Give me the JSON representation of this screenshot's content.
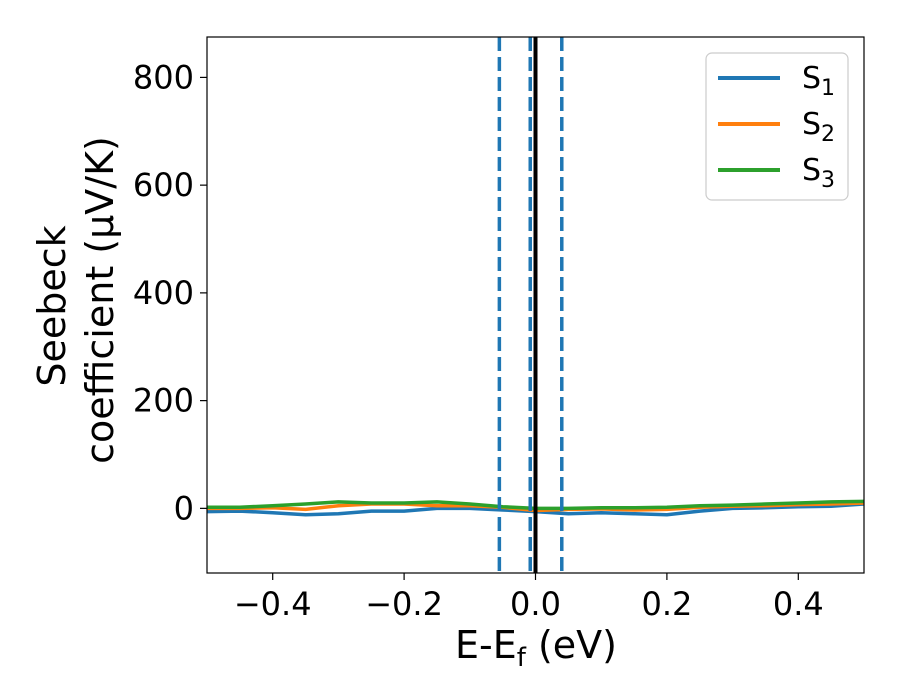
{
  "chart_data": {
    "type": "line",
    "xlabel": "E-E",
    "xlabel_sub": "f",
    "xlabel_unit": " (eV)",
    "ylabel_line1": "Seebeck",
    "ylabel_line2": "coefficient  (μV/K)",
    "xlim": [
      -0.5,
      0.5
    ],
    "ylim": [
      -120,
      875
    ],
    "xticks": [
      -0.4,
      -0.2,
      0.0,
      0.2,
      0.4
    ],
    "xtick_labels": [
      "−0.4",
      "−0.2",
      "0.0",
      "0.2",
      "0.4"
    ],
    "yticks": [
      0,
      200,
      400,
      600,
      800
    ],
    "ytick_labels": [
      "0",
      "200",
      "400",
      "600",
      "800"
    ],
    "grid": false,
    "legend_position": "top-right",
    "vertical_lines": [
      {
        "x": -0.055,
        "style": "dashed",
        "color": "#1f77b4"
      },
      {
        "x": -0.008,
        "style": "dashed",
        "color": "#1f77b4"
      },
      {
        "x": 0.04,
        "style": "dashed",
        "color": "#1f77b4"
      },
      {
        "x": 0.0,
        "style": "solid",
        "color": "#000000"
      }
    ],
    "series": [
      {
        "name": "S",
        "sub": "1",
        "color": "#1f77b4",
        "x": [
          -0.5,
          -0.45,
          -0.4,
          -0.35,
          -0.3,
          -0.25,
          -0.2,
          -0.15,
          -0.1,
          -0.05,
          0.0,
          0.05,
          0.1,
          0.15,
          0.2,
          0.25,
          0.3,
          0.35,
          0.4,
          0.45,
          0.5
        ],
        "y": [
          -6,
          -5,
          -8,
          -12,
          -10,
          -5,
          -5,
          0,
          0,
          -3,
          -6,
          -10,
          -8,
          -10,
          -12,
          -5,
          0,
          1,
          3,
          4,
          8
        ]
      },
      {
        "name": "S",
        "sub": "2",
        "color": "#ff7f0e",
        "x": [
          -0.5,
          -0.45,
          -0.4,
          -0.35,
          -0.3,
          -0.25,
          -0.2,
          -0.15,
          -0.1,
          -0.05,
          0.0,
          0.05,
          0.1,
          0.15,
          0.2,
          0.25,
          0.3,
          0.35,
          0.4,
          0.45,
          0.5
        ],
        "y": [
          0,
          0,
          1,
          -2,
          5,
          8,
          8,
          5,
          5,
          2,
          -4,
          -2,
          -1,
          -3,
          -2,
          2,
          4,
          5,
          7,
          8,
          10
        ]
      },
      {
        "name": "S",
        "sub": "3",
        "color": "#2ca02c",
        "x": [
          -0.5,
          -0.45,
          -0.4,
          -0.35,
          -0.3,
          -0.25,
          -0.2,
          -0.15,
          -0.1,
          -0.05,
          0.0,
          0.05,
          0.1,
          0.15,
          0.2,
          0.25,
          0.3,
          0.35,
          0.4,
          0.45,
          0.5
        ],
        "y": [
          2,
          2,
          5,
          8,
          12,
          10,
          10,
          12,
          8,
          3,
          0,
          0,
          1,
          1,
          2,
          5,
          6,
          8,
          10,
          12,
          13
        ]
      }
    ]
  }
}
